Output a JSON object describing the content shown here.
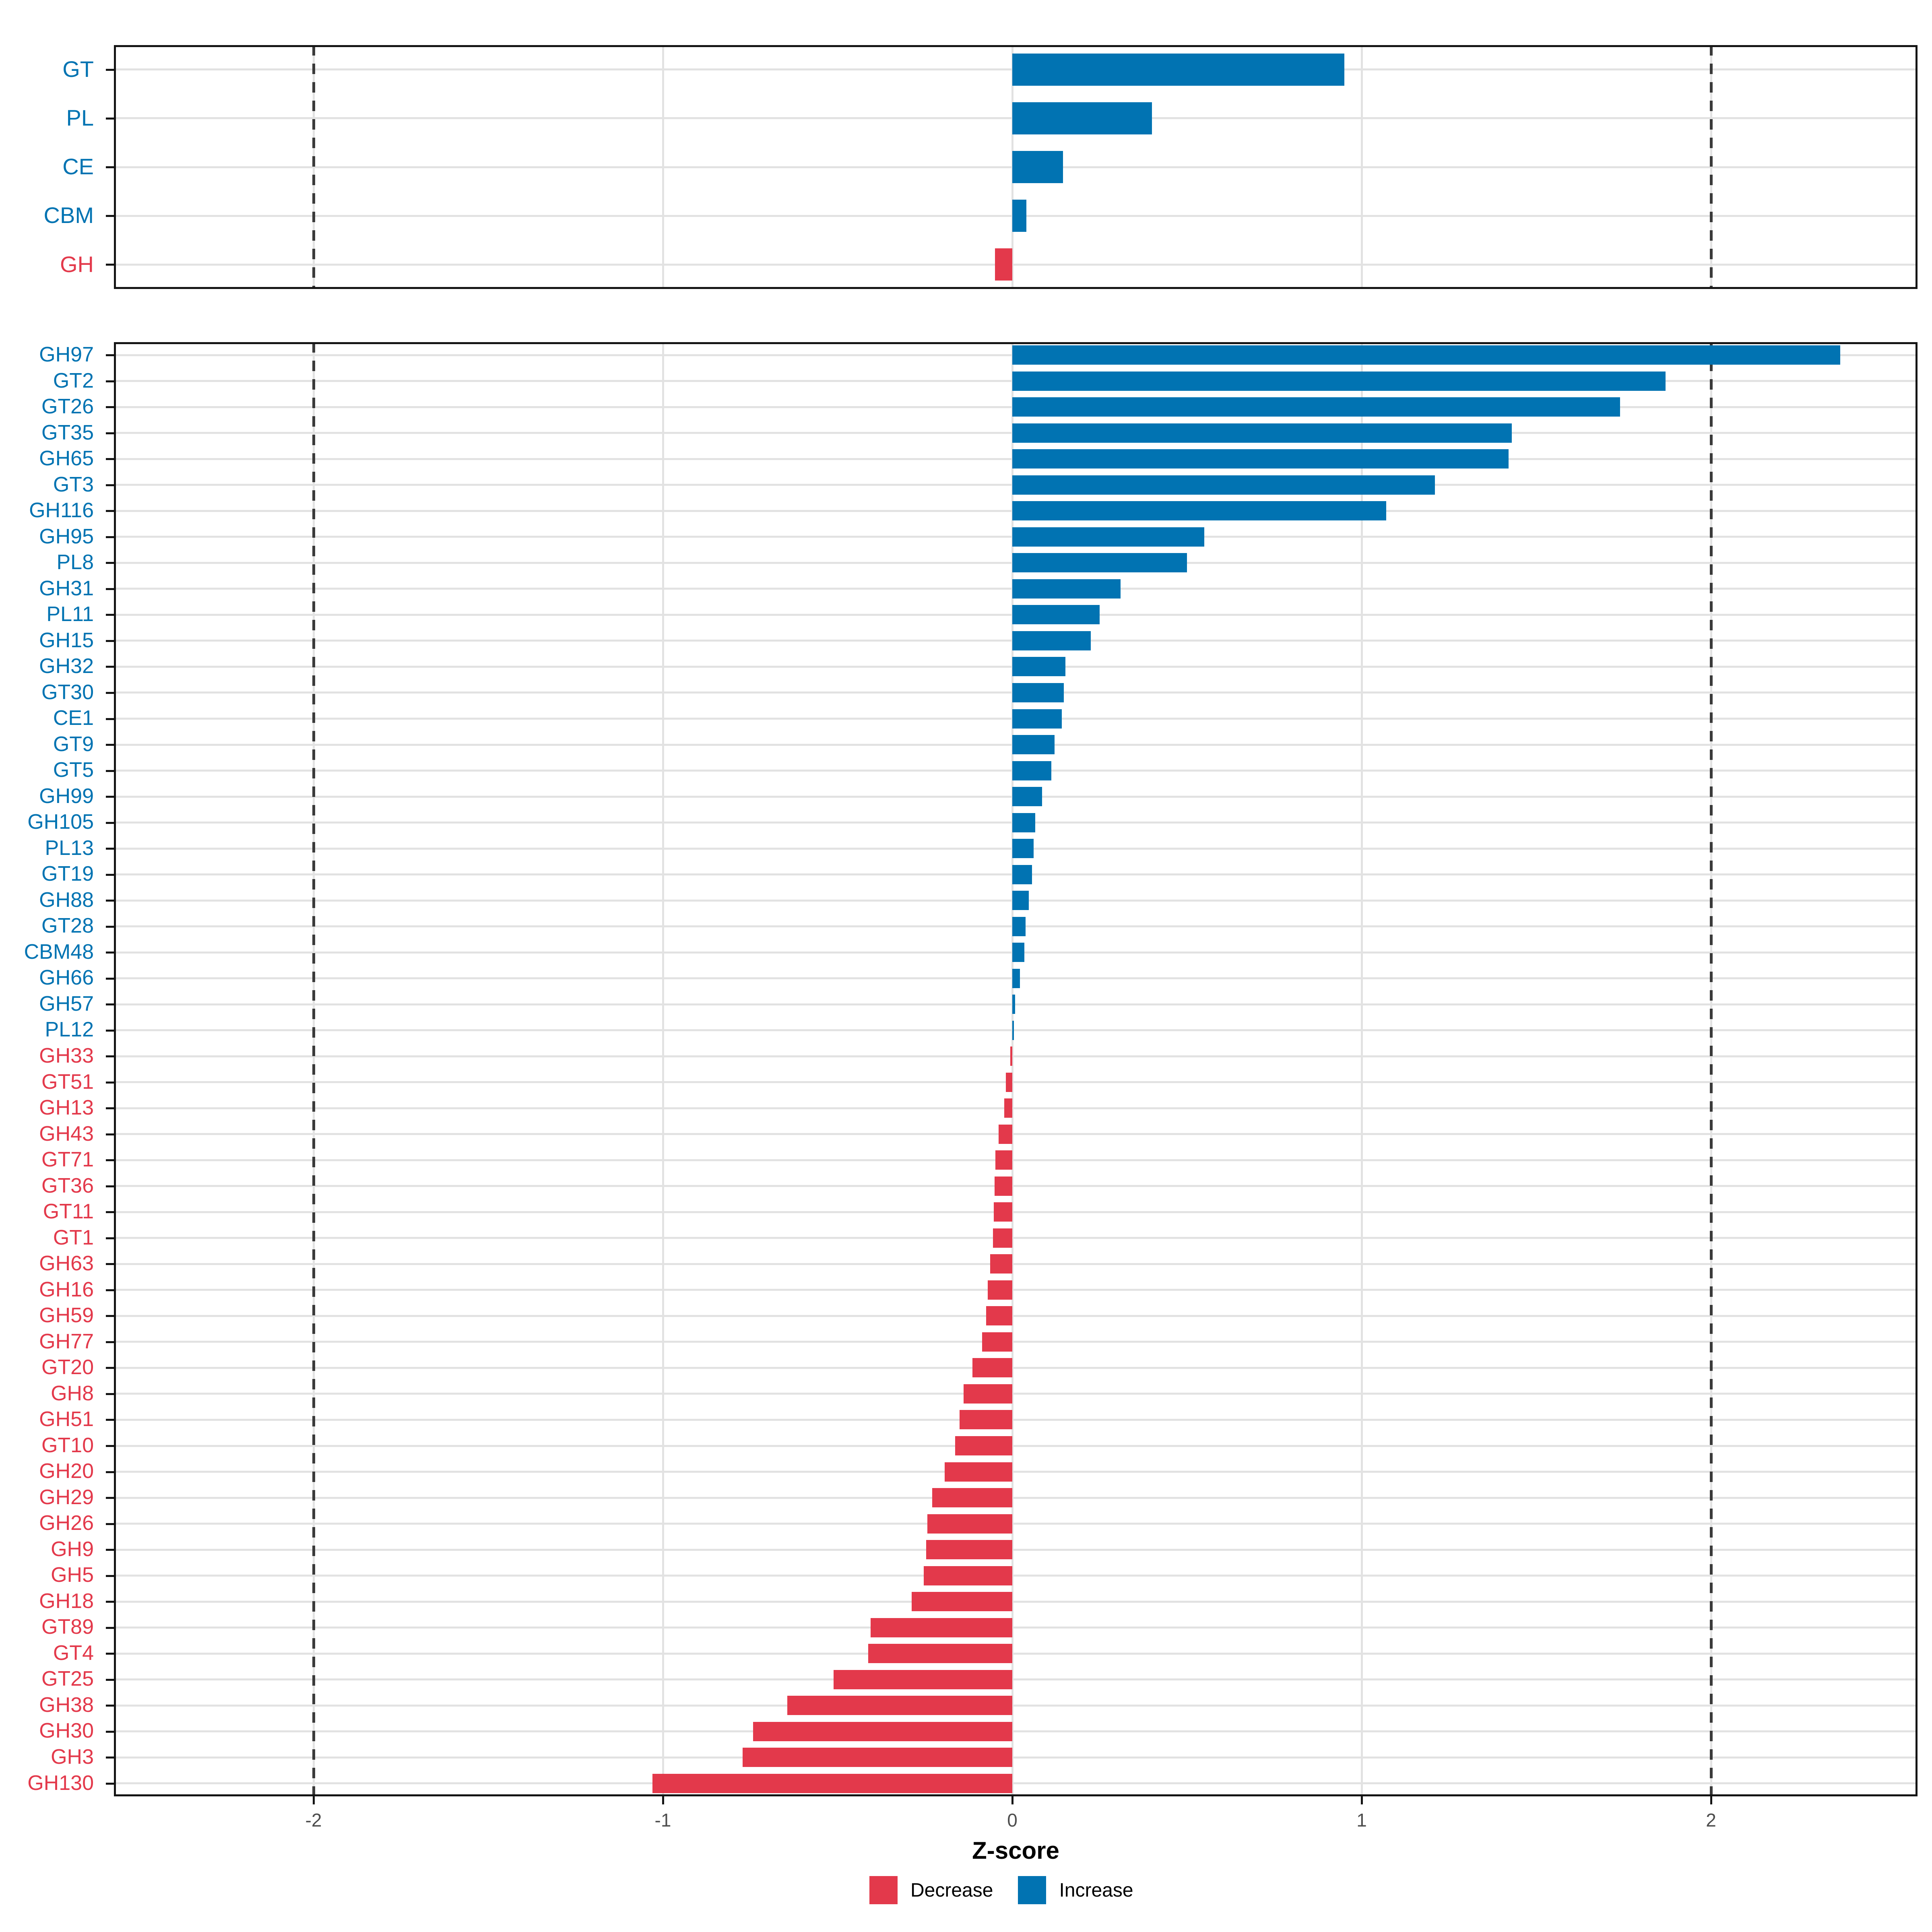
{
  "chart_data": [
    {
      "type": "bar",
      "orientation": "horizontal",
      "panel": "cazyme-classes",
      "categories": [
        "GT",
        "PL",
        "CE",
        "CBM",
        "GH"
      ],
      "values": [
        0.95,
        0.4,
        0.145,
        0.04,
        -0.05
      ],
      "xlabel": "Z-score",
      "xlim": [
        -2.575,
        2.59
      ],
      "grid": true
    },
    {
      "type": "bar",
      "orientation": "horizontal",
      "panel": "cazyme-families",
      "categories": [
        "GH97",
        "GT2",
        "GT26",
        "GT35",
        "GH65",
        "GT3",
        "GH116",
        "GH95",
        "PL8",
        "GH31",
        "PL11",
        "GH15",
        "GH32",
        "GT30",
        "CE1",
        "GT9",
        "GT5",
        "GH99",
        "GH105",
        "PL13",
        "GT19",
        "GH88",
        "GT28",
        "CBM48",
        "GH66",
        "GH57",
        "PL12",
        "GH33",
        "GT51",
        "GH13",
        "GH43",
        "GT71",
        "GT36",
        "GT11",
        "GT1",
        "GH63",
        "GH16",
        "GH59",
        "GH77",
        "GT20",
        "GH8",
        "GH51",
        "GT10",
        "GH20",
        "GH29",
        "GH26",
        "GH9",
        "GH5",
        "GH18",
        "GT89",
        "GT4",
        "GT25",
        "GH38",
        "GH30",
        "GH3",
        "GH130"
      ],
      "values": [
        2.37,
        1.87,
        1.74,
        1.43,
        1.42,
        1.21,
        1.07,
        0.55,
        0.5,
        0.31,
        0.25,
        0.225,
        0.152,
        0.148,
        0.142,
        0.121,
        0.112,
        0.085,
        0.066,
        0.061,
        0.057,
        0.047,
        0.038,
        0.034,
        0.022,
        0.008,
        0.005,
        -0.006,
        -0.019,
        -0.023,
        -0.039,
        -0.048,
        -0.051,
        -0.053,
        -0.055,
        -0.063,
        -0.07,
        -0.075,
        -0.086,
        -0.114,
        -0.139,
        -0.151,
        -0.164,
        -0.193,
        -0.229,
        -0.243,
        -0.247,
        -0.253,
        -0.288,
        -0.405,
        -0.413,
        -0.512,
        -0.644,
        -0.742,
        -0.772,
        -1.03
      ],
      "xlabel": "Z-score",
      "xlim": [
        -2.575,
        2.59
      ],
      "grid": true
    }
  ],
  "axis": {
    "xlabel": "Z-score",
    "tick_values": [
      -2,
      -1,
      0,
      1,
      2
    ],
    "tick_labels": [
      "-2",
      "-1",
      "0",
      "1",
      "2"
    ],
    "dashed_lines": [
      -2,
      2
    ]
  },
  "legend": {
    "items": [
      {
        "label": "Decrease",
        "color": "#e3394b"
      },
      {
        "label": "Increase",
        "color": "#0173b2"
      }
    ]
  },
  "colors": {
    "increase": "#0173b2",
    "decrease": "#e3394b",
    "grid": "#e2e2e2",
    "dashed": "#3a3a3a",
    "border": "#141414",
    "axis_text": "#4d4d4d"
  }
}
